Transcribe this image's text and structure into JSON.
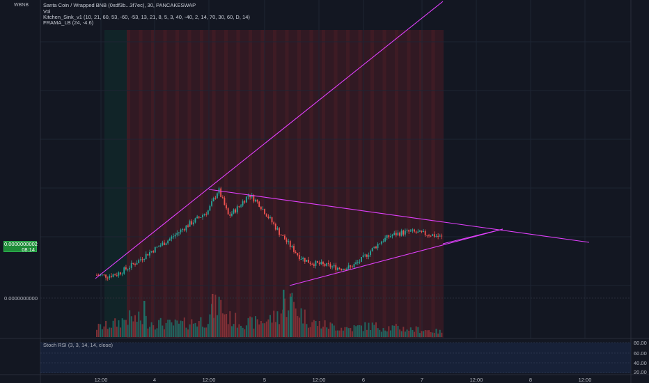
{
  "header": {
    "symbol_short": "WBNB",
    "title": "Santa Coin / Wrapped BNB (0xdf3b...3f7ec), 30, PANCAKESWAP",
    "vol_label": "Vol",
    "indicator1": "Kitchen_Sink_v1 (10, 21, 60, 53, -60, -53, 13, 21, 8, 5, 3, 40, -40, 2, 14, 70, 30, 60, D, 14)",
    "indicator2": "FRAMA_LB (24, -4.6)"
  },
  "price_axis": {
    "current_price": "0.0000000002",
    "countdown": "08:14",
    "low_label": "0.0000000000"
  },
  "stoch": {
    "label": "Stoch RSI (3, 3, 14, 14, close)",
    "ticks": [
      "80.00",
      "60.00",
      "40.00",
      "20.00"
    ]
  },
  "time_axis": {
    "labels": [
      "12:00",
      "4",
      "12:00",
      "5",
      "12:00",
      "6",
      "7",
      "12:00",
      "8",
      "12:00"
    ]
  },
  "colors": {
    "background": "#131722",
    "up": "#26a69a",
    "down": "#ef5350",
    "trendline": "#e040fb",
    "zone_red": "#4a1c24",
    "zone_teal": "#10302e"
  },
  "chart_data": {
    "type": "candlestick",
    "interval": "30",
    "x_labels": [
      "12:00",
      "4",
      "12:00",
      "5",
      "12:00",
      "6",
      "7",
      "12:00",
      "8",
      "12:00"
    ],
    "y_tick_labels": [
      "0.0000000002",
      "0.0000000000"
    ],
    "close_path_pct": [
      0.11,
      0.1,
      0.12,
      0.18,
      0.25,
      0.33,
      0.4,
      0.47,
      0.55,
      0.63,
      0.7,
      0.78,
      1.0,
      0.72,
      0.82,
      0.95,
      0.85,
      0.7,
      0.55,
      0.42,
      0.3,
      0.24,
      0.22,
      0.2,
      0.18,
      0.19,
      0.26,
      0.36,
      0.46,
      0.52,
      0.55,
      0.56,
      0.54,
      0.53,
      0.5
    ],
    "volume_path_pct": [
      0.15,
      0.18,
      0.22,
      0.3,
      0.28,
      0.25,
      0.22,
      0.2,
      0.2,
      0.22,
      0.25,
      0.28,
      0.55,
      0.3,
      0.25,
      0.22,
      0.24,
      0.28,
      0.35,
      0.6,
      0.4,
      0.25,
      0.2,
      0.18,
      0.15,
      0.14,
      0.16,
      0.18,
      0.16,
      0.15,
      0.14,
      0.12,
      0.12,
      0.1,
      0.08
    ],
    "trendlines": [
      {
        "name": "rising-resistance",
        "from": [
          0.0,
          0.11
        ],
        "to": [
          0.82,
          1.0
        ]
      },
      {
        "name": "descending-top",
        "from": [
          0.26,
          1.0
        ],
        "to": [
          1.0,
          0.55
        ]
      },
      {
        "name": "rising-support",
        "from": [
          0.45,
          0.08
        ],
        "to": [
          0.86,
          0.58
        ]
      }
    ],
    "stoch_rsi": {
      "params": "3, 3, 14, 14, close",
      "ylim": [
        0,
        100
      ],
      "ticks": [
        80,
        60,
        40,
        20
      ]
    }
  }
}
